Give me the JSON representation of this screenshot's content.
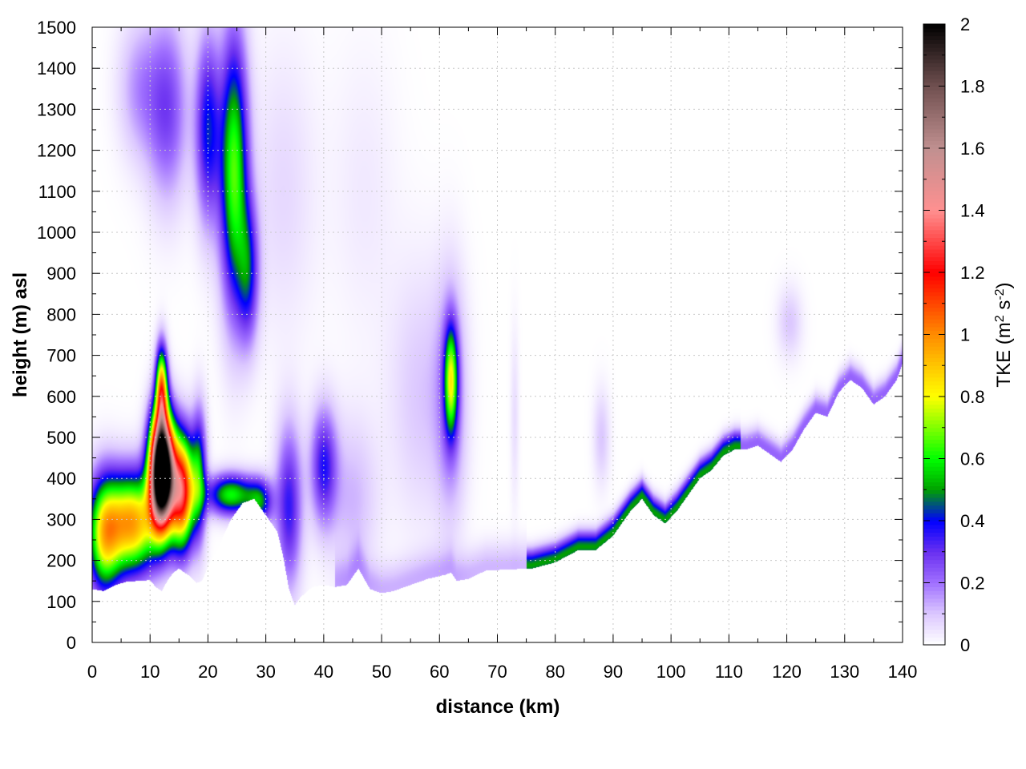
{
  "chart_data": {
    "type": "heatmap",
    "xlabel": "distance (km)",
    "ylabel": "height (m) asl",
    "xlim": [
      0,
      140
    ],
    "ylim": [
      0,
      1500
    ],
    "x_ticks": [
      0,
      10,
      20,
      30,
      40,
      50,
      60,
      70,
      80,
      90,
      100,
      110,
      120,
      130,
      140
    ],
    "y_ticks": [
      0,
      100,
      200,
      300,
      400,
      500,
      600,
      700,
      800,
      900,
      1000,
      1100,
      1200,
      1300,
      1400,
      1500
    ],
    "x_tick_labels": [
      "0",
      "10",
      "20",
      "30",
      "40",
      "50",
      "60",
      "70",
      "80",
      "90",
      "100",
      "110",
      "120",
      "130",
      "140"
    ],
    "y_tick_labels": [
      "0",
      "100",
      "200",
      "300",
      "400",
      "500",
      "600",
      "700",
      "800",
      "900",
      "1000",
      "1100",
      "1200",
      "1300",
      "1400",
      "1500"
    ],
    "grid": true,
    "colorbar": {
      "label_main": "TKE (m",
      "label_sup1": "2",
      "label_mid": " s",
      "label_sup2": "-2",
      "label_end": ")",
      "range": [
        0,
        2
      ],
      "ticks": [
        0,
        0.2,
        0.4,
        0.6,
        0.8,
        1,
        1.2,
        1.4,
        1.6,
        1.8,
        2
      ],
      "tick_labels": [
        "0",
        "0.2",
        "0.4",
        "0.6",
        "0.8",
        "1",
        "1.2",
        "1.4",
        "1.6",
        "1.8",
        "2"
      ],
      "colors": [
        [
          0.0,
          "#ffffff"
        ],
        [
          0.1,
          "#dcc8ff"
        ],
        [
          0.2,
          "#a070ff"
        ],
        [
          0.3,
          "#6a30f0"
        ],
        [
          0.4,
          "#0000ff"
        ],
        [
          0.5,
          "#00a000"
        ],
        [
          0.6,
          "#00ff00"
        ],
        [
          0.8,
          "#ffff00"
        ],
        [
          1.0,
          "#ff8c00"
        ],
        [
          1.2,
          "#ff0000"
        ],
        [
          1.4,
          "#ff9090"
        ],
        [
          1.6,
          "#c09090"
        ],
        [
          1.8,
          "#705050"
        ],
        [
          2.0,
          "#000000"
        ]
      ]
    },
    "terrain": [
      [
        0,
        130
      ],
      [
        2,
        125
      ],
      [
        4,
        140
      ],
      [
        6,
        148
      ],
      [
        8,
        150
      ],
      [
        10,
        152
      ],
      [
        11,
        135
      ],
      [
        12,
        125
      ],
      [
        13,
        150
      ],
      [
        14,
        170
      ],
      [
        15,
        180
      ],
      [
        16,
        170
      ],
      [
        17,
        160
      ],
      [
        18,
        145
      ],
      [
        19,
        150
      ],
      [
        20,
        185
      ],
      [
        22,
        240
      ],
      [
        24,
        300
      ],
      [
        26,
        340
      ],
      [
        28,
        350
      ],
      [
        30,
        310
      ],
      [
        32,
        270
      ],
      [
        33,
        210
      ],
      [
        34,
        130
      ],
      [
        35,
        90
      ],
      [
        36,
        110
      ],
      [
        38,
        135
      ],
      [
        40,
        140
      ],
      [
        42,
        135
      ],
      [
        44,
        140
      ],
      [
        46,
        180
      ],
      [
        48,
        130
      ],
      [
        50,
        120
      ],
      [
        52,
        125
      ],
      [
        55,
        140
      ],
      [
        58,
        155
      ],
      [
        61,
        165
      ],
      [
        62,
        170
      ],
      [
        63,
        150
      ],
      [
        65,
        155
      ],
      [
        68,
        175
      ],
      [
        72,
        178
      ],
      [
        76,
        180
      ],
      [
        80,
        195
      ],
      [
        84,
        225
      ],
      [
        87,
        225
      ],
      [
        90,
        260
      ],
      [
        93,
        320
      ],
      [
        95,
        350
      ],
      [
        97,
        310
      ],
      [
        99,
        290
      ],
      [
        101,
        320
      ],
      [
        103,
        360
      ],
      [
        105,
        400
      ],
      [
        107,
        420
      ],
      [
        109,
        455
      ],
      [
        111,
        470
      ],
      [
        113,
        470
      ],
      [
        115,
        480
      ],
      [
        117,
        460
      ],
      [
        119,
        440
      ],
      [
        121,
        470
      ],
      [
        123,
        520
      ],
      [
        125,
        560
      ],
      [
        127,
        550
      ],
      [
        129,
        610
      ],
      [
        131,
        640
      ],
      [
        133,
        620
      ],
      [
        135,
        580
      ],
      [
        137,
        600
      ],
      [
        139,
        640
      ],
      [
        140,
        680
      ]
    ],
    "field": [
      {
        "x": 12,
        "y": 420,
        "sx": 1.4,
        "sy": 95,
        "amp": 2.6
      },
      {
        "x": 15.5,
        "y": 370,
        "sx": 1.5,
        "sy": 95,
        "amp": 1.25
      },
      {
        "x": 7,
        "y": 290,
        "sx": 3.2,
        "sy": 85,
        "amp": 0.95
      },
      {
        "x": 2,
        "y": 260,
        "sx": 2.0,
        "sy": 100,
        "amp": 0.7
      },
      {
        "x": 12,
        "y": 620,
        "sx": 0.7,
        "sy": 70,
        "amp": 0.9
      },
      {
        "x": 18.5,
        "y": 410,
        "sx": 0.9,
        "sy": 110,
        "amp": 0.45
      },
      {
        "x": 24,
        "y": 360,
        "sx": 3.0,
        "sy": 35,
        "amp": 0.6
      },
      {
        "x": 29,
        "y": 340,
        "sx": 1.5,
        "sy": 40,
        "amp": 0.4
      },
      {
        "x": 24.5,
        "y": 1150,
        "sx": 1.7,
        "sy": 230,
        "amp": 0.65
      },
      {
        "x": 20,
        "y": 1250,
        "sx": 1.5,
        "sy": 160,
        "amp": 0.4
      },
      {
        "x": 13,
        "y": 1300,
        "sx": 2.5,
        "sy": 160,
        "amp": 0.27
      },
      {
        "x": 8,
        "y": 1350,
        "sx": 2.5,
        "sy": 120,
        "amp": 0.15
      },
      {
        "x": 27,
        "y": 900,
        "sx": 1.3,
        "sy": 120,
        "amp": 0.35
      },
      {
        "x": 34,
        "y": 330,
        "sx": 1.6,
        "sy": 140,
        "amp": 0.35
      },
      {
        "x": 40,
        "y": 430,
        "sx": 1.6,
        "sy": 100,
        "amp": 0.35
      },
      {
        "x": 45,
        "y": 350,
        "sx": 3.0,
        "sy": 140,
        "amp": 0.12
      },
      {
        "x": 57,
        "y": 600,
        "sx": 4.0,
        "sy": 220,
        "amp": 0.1
      },
      {
        "x": 62,
        "y": 640,
        "sx": 0.8,
        "sy": 90,
        "amp": 0.6
      },
      {
        "x": 62,
        "y": 600,
        "sx": 1.8,
        "sy": 200,
        "amp": 0.2
      },
      {
        "x": 73,
        "y": 550,
        "sx": 0.5,
        "sy": 150,
        "amp": 0.06
      },
      {
        "x": 88,
        "y": 500,
        "sx": 1.0,
        "sy": 80,
        "amp": 0.1
      },
      {
        "x": 120.5,
        "y": 780,
        "sx": 1.5,
        "sy": 60,
        "amp": 0.1
      },
      {
        "x": 33,
        "y": 1100,
        "sx": 4.0,
        "sy": 250,
        "amp": 0.07
      },
      {
        "x": 47,
        "y": 1100,
        "sx": 4.0,
        "sy": 250,
        "amp": 0.04
      }
    ],
    "boundary_layer": {
      "amp": 0.5,
      "depth": 26,
      "peak_above": 8
    }
  }
}
